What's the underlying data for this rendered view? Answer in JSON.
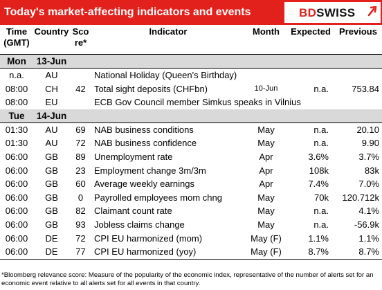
{
  "header": {
    "title": "Today's market-affecting indicators and events",
    "logo_text_bd": "BD",
    "logo_text_swiss": "SWISS",
    "accent": "#e2211c"
  },
  "table": {
    "columns": [
      "Time (GMT)",
      "Country",
      "Score*",
      "Indicator",
      "Month",
      "Expected",
      "Previous"
    ],
    "col_time": "Time (GMT)",
    "col_country": "Country",
    "col_score": "Sco re*",
    "col_indicator": "Indicator",
    "col_month": "Month",
    "col_expected": "Expected",
    "col_previous": "Previous",
    "days": [
      {
        "weekday": "Mon",
        "date": "13-Jun",
        "rows": [
          {
            "time": "n.a.",
            "country": "AU",
            "score": "",
            "indicator": "National Holiday (Queen's Birthday)",
            "month": "",
            "expected": "",
            "previous": ""
          },
          {
            "time": "08:00",
            "country": "CH",
            "score": "42",
            "indicator": "Total sight deposits (CHFbn)",
            "month": "10-Jun",
            "expected": "n.a.",
            "previous": "753.84"
          },
          {
            "time": "08:00",
            "country": "EU",
            "score": "",
            "indicator": "ECB Gov Council member Simkus speaks in Vilnius",
            "month": "",
            "expected": "",
            "previous": ""
          }
        ]
      },
      {
        "weekday": "Tue",
        "date": "14-Jun",
        "rows": [
          {
            "time": "01:30",
            "country": "AU",
            "score": "69",
            "indicator": "NAB business conditions",
            "month": "May",
            "expected": "n.a.",
            "previous": "20.10"
          },
          {
            "time": "01:30",
            "country": "AU",
            "score": "72",
            "indicator": "NAB business confidence",
            "month": "May",
            "expected": "n.a.",
            "previous": "9.90"
          },
          {
            "time": "06:00",
            "country": "GB",
            "score": "89",
            "indicator": "Unemployment rate",
            "month": "Apr",
            "expected": "3.6%",
            "previous": "3.7%"
          },
          {
            "time": "06:00",
            "country": "GB",
            "score": "23",
            "indicator": "Employment change 3m/3m",
            "month": "Apr",
            "expected": "108k",
            "previous": "83k"
          },
          {
            "time": "06:00",
            "country": "GB",
            "score": "60",
            "indicator": "Average weekly earnings",
            "month": "Apr",
            "expected": "7.4%",
            "previous": "7.0%"
          },
          {
            "time": "06:00",
            "country": "GB",
            "score": "0",
            "indicator": "Payrolled employees mom chng",
            "month": "May",
            "expected": "70k",
            "previous": "120.712k"
          },
          {
            "time": "06:00",
            "country": "GB",
            "score": "82",
            "indicator": "Claimant count rate",
            "month": "May",
            "expected": "n.a.",
            "previous": "4.1%"
          },
          {
            "time": "06:00",
            "country": "GB",
            "score": "93",
            "indicator": "Jobless claims change",
            "month": "May",
            "expected": "n.a.",
            "previous": "-56.9k"
          },
          {
            "time": "06:00",
            "country": "DE",
            "score": "72",
            "indicator": "CPI EU harmonized (mom)",
            "month": "May (F)",
            "expected": "1.1%",
            "previous": "1.1%"
          },
          {
            "time": "06:00",
            "country": "DE",
            "score": "77",
            "indicator": "CPI EU harmonized (yoy)",
            "month": "May (F)",
            "expected": "8.7%",
            "previous": "8.7%"
          }
        ]
      }
    ]
  },
  "footnote": "*Bloomberg relevance score: Measure of the popularity of the economic index, representative of the number of alerts set for an economic event relative to all alerts set for all events in that country."
}
